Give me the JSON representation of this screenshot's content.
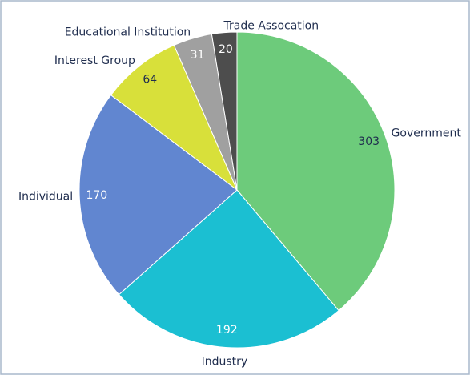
{
  "chart_data": {
    "type": "pie",
    "categories": [
      "Government",
      "Industry",
      "Individual",
      "Interest Group",
      "Educational Institution",
      "Trade Assocation"
    ],
    "values": [
      303,
      192,
      170,
      64,
      31,
      20
    ],
    "colors": [
      "#6dcb7b",
      "#1bbfd2",
      "#6186d0",
      "#d8e03a",
      "#a0a0a0",
      "#4d4d4d"
    ],
    "value_label_colors": [
      "#1f2d4e",
      "#ffffff",
      "#ffffff",
      "#1f2d4e",
      "#ffffff",
      "#ffffff"
    ]
  }
}
